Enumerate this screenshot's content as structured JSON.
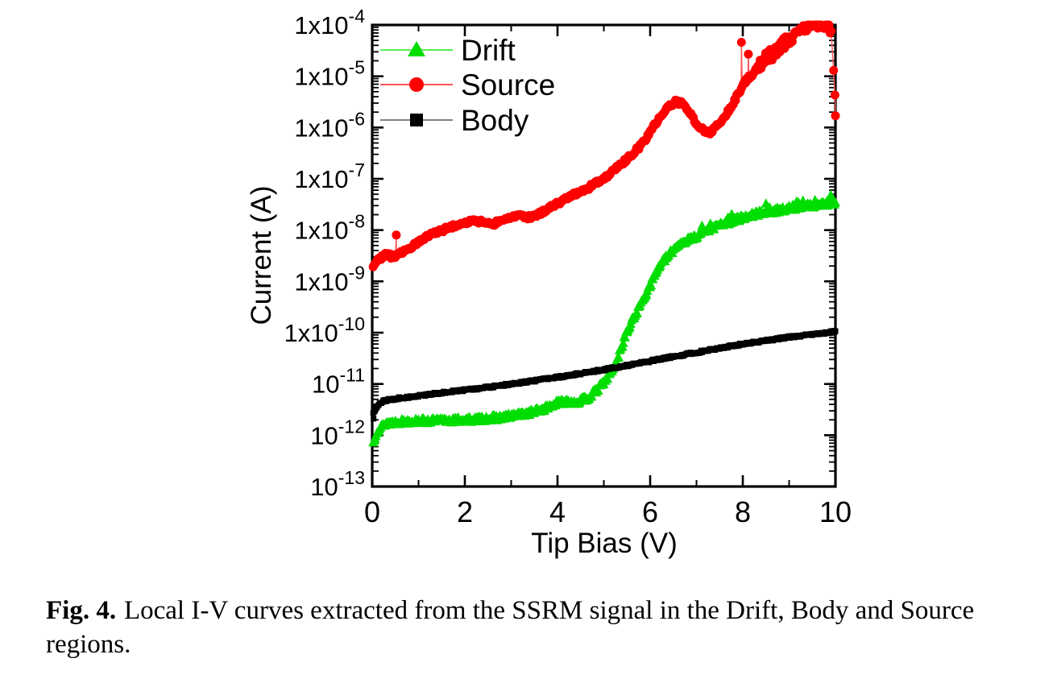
{
  "caption": {
    "label": "Fig. 4.",
    "text": "Local I-V curves extracted from the SSRM signal in the Drift, Body and Source regions."
  },
  "chart_data": {
    "type": "scatter",
    "title": "",
    "xlabel": "Tip Bias (V)",
    "ylabel": "Current (A)",
    "grid": false,
    "x_axis": {
      "min": 0,
      "max": 10,
      "major_ticks": [
        0,
        2,
        4,
        6,
        8,
        10
      ],
      "minor_ticks": [
        1,
        3,
        5,
        7,
        9
      ],
      "tick_labels": [
        "0",
        "2",
        "4",
        "6",
        "8",
        "10"
      ]
    },
    "y_axis": {
      "scale": "log",
      "min": 1e-13,
      "max": 0.0001,
      "tick_labels": [
        {
          "text": "1x10",
          "sup": "-4"
        },
        {
          "text": "1x10",
          "sup": "-5"
        },
        {
          "text": "1x10",
          "sup": "-6"
        },
        {
          "text": "1x10",
          "sup": "-7"
        },
        {
          "text": "1x10",
          "sup": "-8"
        },
        {
          "text": "1x10",
          "sup": "-9"
        },
        {
          "text": "1x10",
          "sup": "-10"
        },
        {
          "text": "10",
          "sup": "-11"
        },
        {
          "text": "10",
          "sup": "-12"
        },
        {
          "text": "10",
          "sup": "-13"
        }
      ]
    },
    "legend": {
      "position": "top-left-inside",
      "items": [
        {
          "label": "Drift",
          "marker": "triangle"
        },
        {
          "label": "Source",
          "marker": "circle"
        },
        {
          "label": "Body",
          "marker": "square"
        }
      ]
    },
    "series": [
      {
        "name": "Drift",
        "marker": "triangle",
        "color": "#00dd00",
        "line_color": "#55ee55",
        "noise_dec": 0.05,
        "spike_from": 7.0,
        "spike_amp": 0.1,
        "spike_prob": 0.09,
        "step": 0.02,
        "points": [
          [
            0.02,
            7e-13
          ],
          [
            0.1,
            1.2e-12
          ],
          [
            0.3,
            1.7e-12
          ],
          [
            0.7,
            1.85e-12
          ],
          [
            1.5,
            1.9e-12
          ],
          [
            2.2,
            2e-12
          ],
          [
            2.8,
            2.2e-12
          ],
          [
            3.3,
            2.6e-12
          ],
          [
            3.7,
            3.2e-12
          ],
          [
            4.0,
            4.2e-12
          ],
          [
            4.2,
            4.6e-12
          ],
          [
            4.4,
            4.3e-12
          ],
          [
            4.65,
            5.2e-12
          ],
          [
            4.85,
            7.5e-12
          ],
          [
            5.05,
            1.2e-11
          ],
          [
            5.25,
            2.3e-11
          ],
          [
            5.45,
            8e-11
          ],
          [
            5.6,
            1.6e-10
          ],
          [
            5.8,
            3.6e-10
          ],
          [
            6.0,
            8.5e-10
          ],
          [
            6.2,
            2e-09
          ],
          [
            6.4,
            3.2e-09
          ],
          [
            6.6,
            5.2e-09
          ],
          [
            6.9,
            6.8e-09
          ],
          [
            7.1,
            8.5e-09
          ],
          [
            7.4,
            1.15e-08
          ],
          [
            7.8,
            1.5e-08
          ],
          [
            8.1,
            1.9e-08
          ],
          [
            8.5,
            2.2e-08
          ],
          [
            9.0,
            2.6e-08
          ],
          [
            9.5,
            3e-08
          ],
          [
            10.0,
            3.4e-08
          ]
        ],
        "extra_points": []
      },
      {
        "name": "Source",
        "marker": "circle",
        "color": "#ff0000",
        "line_color": "#ff5555",
        "noise_dec": 0.04,
        "noise2_dec": 0.12,
        "noise2_from": 8.3,
        "step": 0.024,
        "points": [
          [
            0.02,
            2.1e-09
          ],
          [
            0.15,
            2.8e-09
          ],
          [
            0.3,
            3.3e-09
          ],
          [
            0.45,
            3e-09
          ],
          [
            0.6,
            3.6e-09
          ],
          [
            0.8,
            4.4e-09
          ],
          [
            1.0,
            5.8e-09
          ],
          [
            1.2,
            7.5e-09
          ],
          [
            1.45,
            9.5e-09
          ],
          [
            1.7,
            1.15e-08
          ],
          [
            1.95,
            1.3e-08
          ],
          [
            2.2,
            1.55e-08
          ],
          [
            2.45,
            1.4e-08
          ],
          [
            2.6,
            1.3e-08
          ],
          [
            2.8,
            1.6e-08
          ],
          [
            3.0,
            1.75e-08
          ],
          [
            3.2,
            1.85e-08
          ],
          [
            3.45,
            1.75e-08
          ],
          [
            3.7,
            2.3e-08
          ],
          [
            4.0,
            3.3e-08
          ],
          [
            4.3,
            4.6e-08
          ],
          [
            4.6,
            6.2e-08
          ],
          [
            4.9,
            8.8e-08
          ],
          [
            5.2,
            1.4e-07
          ],
          [
            5.5,
            2.4e-07
          ],
          [
            5.8,
            4.5e-07
          ],
          [
            6.0,
            8e-07
          ],
          [
            6.2,
            1.6e-06
          ],
          [
            6.4,
            2.6e-06
          ],
          [
            6.55,
            3.2e-06
          ],
          [
            6.7,
            2.9e-06
          ],
          [
            6.85,
            1.9e-06
          ],
          [
            7.0,
            1.2e-06
          ],
          [
            7.15,
            9e-07
          ],
          [
            7.3,
            8e-07
          ],
          [
            7.45,
            1.1e-06
          ],
          [
            7.6,
            1.6e-06
          ],
          [
            7.75,
            2.6e-06
          ],
          [
            7.9,
            4.5e-06
          ],
          [
            8.05,
            8e-06
          ],
          [
            8.2,
            1.1e-05
          ],
          [
            8.35,
            1.5e-05
          ],
          [
            8.5,
            2.2e-05
          ],
          [
            8.7,
            3e-05
          ],
          [
            8.9,
            4.5e-05
          ],
          [
            9.1,
            6e-05
          ],
          [
            9.3,
            8.5e-05
          ],
          [
            9.5,
            0.00011
          ],
          [
            9.7,
            0.000115
          ],
          [
            9.85,
            9.5e-05
          ],
          [
            9.92,
            7.5e-05
          ]
        ],
        "extra_points": [
          [
            0.52,
            8e-09
          ],
          [
            7.97,
            4.6e-05
          ],
          [
            8.12,
            2.7e-05
          ],
          [
            9.96,
            1.3e-05
          ],
          [
            9.99,
            4.3e-06
          ],
          [
            10.0,
            1.7e-06
          ]
        ]
      },
      {
        "name": "Body",
        "marker": "square",
        "color": "#000000",
        "line_color": "#808080",
        "noise_dec": 0.022,
        "step": 0.02,
        "points": [
          [
            0.02,
            2.6e-12
          ],
          [
            0.08,
            3.4e-12
          ],
          [
            0.15,
            4.2e-12
          ],
          [
            0.3,
            4.8e-12
          ],
          [
            0.6,
            5.3e-12
          ],
          [
            1.0,
            5.9e-12
          ],
          [
            1.5,
            6.7e-12
          ],
          [
            2.0,
            7.6e-12
          ],
          [
            2.5,
            8.6e-12
          ],
          [
            3.0,
            1e-11
          ],
          [
            3.5,
            1.15e-11
          ],
          [
            4.0,
            1.35e-11
          ],
          [
            4.5,
            1.6e-11
          ],
          [
            5.0,
            1.9e-11
          ],
          [
            5.5,
            2.3e-11
          ],
          [
            6.0,
            2.8e-11
          ],
          [
            6.5,
            3.4e-11
          ],
          [
            7.0,
            4.1e-11
          ],
          [
            7.5,
            5e-11
          ],
          [
            8.0,
            6e-11
          ],
          [
            8.5,
            7e-11
          ],
          [
            9.0,
            8.2e-11
          ],
          [
            9.5,
            9.3e-11
          ],
          [
            10.0,
            1.05e-10
          ]
        ],
        "extra_points": [
          [
            0.03,
            2.1e-12
          ],
          [
            0.05,
            2.9e-12
          ]
        ]
      }
    ]
  }
}
